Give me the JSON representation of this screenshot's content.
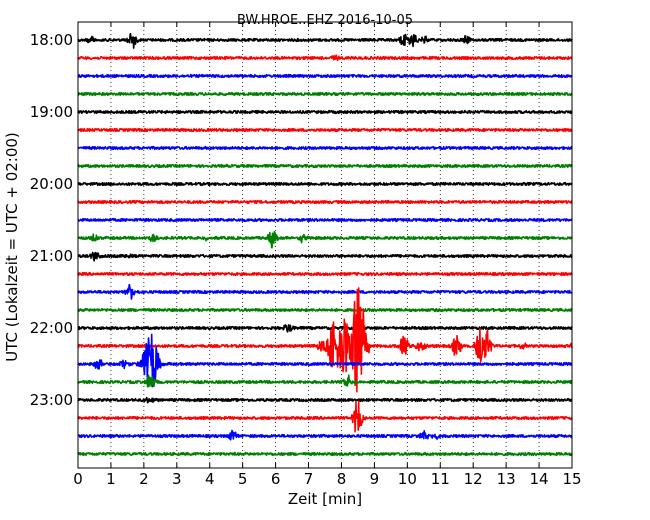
{
  "chart_data": {
    "type": "line",
    "title": "BW.HROE..EHZ 2016-10-05",
    "xlabel": "Zeit  [min]",
    "ylabel": "UTC (Lokalzeit = UTC + 02:00)",
    "xlim": [
      0,
      15
    ],
    "x_ticks": [
      "0",
      "1",
      "2",
      "3",
      "4",
      "5",
      "6",
      "7",
      "8",
      "9",
      "10",
      "11",
      "12",
      "13",
      "14",
      "15"
    ],
    "y_tick_labels": [
      "18:00",
      "19:00",
      "20:00",
      "21:00",
      "22:00",
      "23:00"
    ],
    "grid": "vertical dotted",
    "trace_colors": [
      "#000000",
      "#ff0000",
      "#0000ff",
      "#008000"
    ],
    "series": [
      {
        "start": "18:00",
        "color": "#000000",
        "events": [
          {
            "x": 0.4,
            "amp": 0.45
          },
          {
            "x": 1.65,
            "amp": 0.9
          },
          {
            "x": 9.9,
            "amp": 0.6
          },
          {
            "x": 10.2,
            "amp": 0.7
          },
          {
            "x": 10.5,
            "amp": 0.4
          },
          {
            "x": 11.8,
            "amp": 0.4
          }
        ]
      },
      {
        "start": "18:15",
        "color": "#ff0000",
        "events": [
          {
            "x": 7.8,
            "amp": 0.25
          }
        ]
      },
      {
        "start": "18:30",
        "color": "#0000ff",
        "events": []
      },
      {
        "start": "18:45",
        "color": "#008000",
        "events": []
      },
      {
        "start": "19:00",
        "color": "#000000",
        "events": []
      },
      {
        "start": "19:15",
        "color": "#ff0000",
        "events": []
      },
      {
        "start": "19:30",
        "color": "#0000ff",
        "events": []
      },
      {
        "start": "19:45",
        "color": "#008000",
        "events": []
      },
      {
        "start": "20:00",
        "color": "#000000",
        "events": []
      },
      {
        "start": "20:15",
        "color": "#ff0000",
        "events": []
      },
      {
        "start": "20:30",
        "color": "#0000ff",
        "events": []
      },
      {
        "start": "20:45",
        "color": "#008000",
        "events": [
          {
            "x": 0.5,
            "amp": 0.4
          },
          {
            "x": 2.3,
            "amp": 0.4
          },
          {
            "x": 3.9,
            "amp": 0.25
          },
          {
            "x": 5.9,
            "amp": 0.9
          },
          {
            "x": 6.8,
            "amp": 0.4
          }
        ]
      },
      {
        "start": "21:00",
        "color": "#000000",
        "events": [
          {
            "x": 0.5,
            "amp": 0.5
          },
          {
            "x": 1.6,
            "amp": 0.2
          }
        ]
      },
      {
        "start": "21:15",
        "color": "#ff0000",
        "events": []
      },
      {
        "start": "21:30",
        "color": "#0000ff",
        "events": [
          {
            "x": 1.6,
            "amp": 0.7
          }
        ]
      },
      {
        "start": "21:45",
        "color": "#008000",
        "events": []
      },
      {
        "start": "22:00",
        "color": "#000000",
        "events": [
          {
            "x": 6.4,
            "amp": 0.5
          }
        ]
      },
      {
        "start": "22:15",
        "color": "#ff0000",
        "events": [
          {
            "x": 7.4,
            "amp": 0.8
          },
          {
            "x": 7.8,
            "amp": 2.5
          },
          {
            "x": 8.1,
            "amp": 3.0
          },
          {
            "x": 8.5,
            "amp": 6.0
          },
          {
            "x": 9.9,
            "amp": 1.0
          },
          {
            "x": 10.4,
            "amp": 0.7
          },
          {
            "x": 11.5,
            "amp": 1.2
          },
          {
            "x": 12.2,
            "amp": 2.0
          },
          {
            "x": 12.4,
            "amp": 1.8
          },
          {
            "x": 13.5,
            "amp": 0.3
          },
          {
            "x": 15.0,
            "amp": 0.3
          }
        ]
      },
      {
        "start": "22:30",
        "color": "#0000ff",
        "events": [
          {
            "x": 0.6,
            "amp": 0.6
          },
          {
            "x": 1.4,
            "amp": 0.5
          },
          {
            "x": 2.2,
            "amp": 3.0
          }
        ]
      },
      {
        "start": "22:45",
        "color": "#008000",
        "events": [
          {
            "x": 2.2,
            "amp": 1.0
          },
          {
            "x": 8.2,
            "amp": 0.6
          }
        ]
      },
      {
        "start": "23:00",
        "color": "#000000",
        "events": [
          {
            "x": 2.2,
            "amp": 0.3
          }
        ]
      },
      {
        "start": "23:15",
        "color": "#ff0000",
        "events": [
          {
            "x": 8.5,
            "amp": 2.0
          }
        ]
      },
      {
        "start": "23:30",
        "color": "#0000ff",
        "events": [
          {
            "x": 4.7,
            "amp": 0.6
          },
          {
            "x": 10.5,
            "amp": 0.5
          },
          {
            "x": 10.9,
            "amp": 0.3
          }
        ]
      },
      {
        "start": "23:45",
        "color": "#008000",
        "events": []
      }
    ]
  }
}
